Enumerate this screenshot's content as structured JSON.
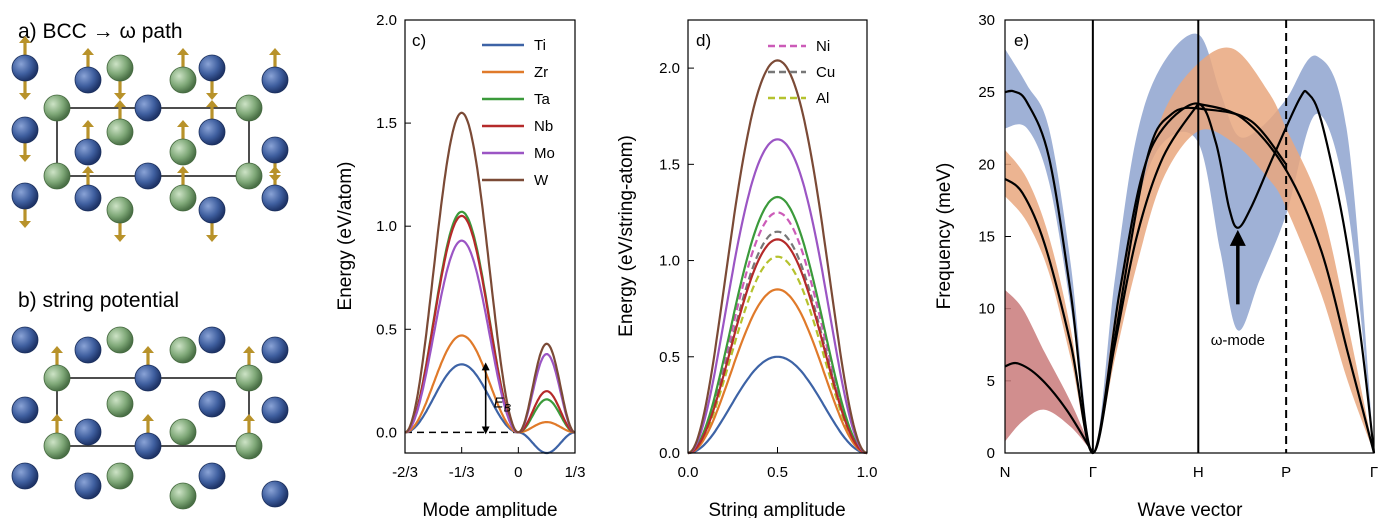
{
  "panels": {
    "a": {
      "caption": "a) BCC → ω path"
    },
    "b": {
      "caption": "b) string potential"
    }
  },
  "colors": {
    "blue_atom": "#3f5f9f",
    "green_atom": "#7fa878",
    "arrow": "#b8922a",
    "band_blue": "#8ea3cf",
    "band_orange": "#e9a77e",
    "band_red": "#c97a7a"
  },
  "chart_data": [
    {
      "panel": "c",
      "label": "c)",
      "type": "line",
      "xlabel": "Mode amplitude",
      "ylabel": "Energy (eV/atom)",
      "xlim": [
        -0.6667,
        0.3333
      ],
      "ylim": [
        -0.1,
        2.0
      ],
      "xticks": [
        -0.6667,
        -0.3333,
        0,
        0.3333
      ],
      "xtick_labels": [
        "-2/3",
        "-1/3",
        "0",
        "1/3"
      ],
      "yticks": [
        0.0,
        0.5,
        1.0,
        1.5,
        2.0
      ],
      "ytick_labels": [
        "0.0",
        "0.5",
        "1.0",
        "1.5",
        "2.0"
      ],
      "legend_position": "top-right",
      "annotation": "E_B",
      "series": [
        {
          "name": "Ti",
          "color": "#3d63a6",
          "barrier": 0.33,
          "right": -0.1
        },
        {
          "name": "Zr",
          "color": "#e07a2a",
          "barrier": 0.47,
          "right": 0.05
        },
        {
          "name": "Ta",
          "color": "#3b9a3b",
          "barrier": 1.07,
          "right": 0.16
        },
        {
          "name": "Nb",
          "color": "#b52a2a",
          "barrier": 1.05,
          "right": 0.2
        },
        {
          "name": "Mo",
          "color": "#9b55c4",
          "barrier": 0.93,
          "right": 0.38
        },
        {
          "name": "W",
          "color": "#7b4a36",
          "barrier": 1.55,
          "right": 0.43
        }
      ]
    },
    {
      "panel": "d",
      "label": "d)",
      "type": "line",
      "xlabel": "String amplitude",
      "ylabel": "Energy (eV/string-atom)",
      "xlim": [
        0.0,
        1.0
      ],
      "ylim": [
        0.0,
        2.25
      ],
      "xticks": [
        0.0,
        0.5,
        1.0
      ],
      "xtick_labels": [
        "0.0",
        "0.5",
        "1.0"
      ],
      "yticks": [
        0.0,
        0.5,
        1.0,
        1.5,
        2.0
      ],
      "ytick_labels": [
        "0.0",
        "0.5",
        "1.0",
        "1.5",
        "2.0"
      ],
      "legend_position": "top-right",
      "series": [
        {
          "name": "Ni",
          "color": "#cc5bb8",
          "dashed": true,
          "peak": 1.25
        },
        {
          "name": "Cu",
          "color": "#777777",
          "dashed": true,
          "peak": 1.15
        },
        {
          "name": "Al",
          "color": "#b5c22e",
          "dashed": true,
          "peak": 1.02
        },
        {
          "name": "",
          "color": "#3d63a6",
          "peak": 0.5
        },
        {
          "name": "",
          "color": "#e07a2a",
          "peak": 0.85
        },
        {
          "name": "",
          "color": "#3b9a3b",
          "peak": 1.33
        },
        {
          "name": "",
          "color": "#b52a2a",
          "peak": 1.11
        },
        {
          "name": "",
          "color": "#9b55c4",
          "peak": 1.63
        },
        {
          "name": "",
          "color": "#7b4a36",
          "peak": 2.04
        }
      ]
    },
    {
      "panel": "e",
      "label": "e)",
      "type": "line",
      "xlabel": "Wave vector",
      "ylabel": "Frequency (meV)",
      "ylim": [
        0,
        30
      ],
      "yticks": [
        0,
        5,
        10,
        15,
        20,
        25,
        30
      ],
      "x_points": [
        "N",
        "Γ",
        "H",
        "P",
        "Γ"
      ],
      "x_positions": [
        0,
        1,
        2.2,
        3.2,
        4.2
      ],
      "annotation": "ω-mode",
      "annotation_target": {
        "x": 2.65,
        "y": 15.6
      },
      "bands": [
        {
          "name": "",
          "color": "#8ea3cf",
          "upper": [
            [
              0,
              28
            ],
            [
              0.25,
              25.5
            ],
            [
              0.5,
              22.5
            ],
            [
              0.75,
              13
            ],
            [
              1,
              0
            ],
            [
              1.25,
              12
            ],
            [
              1.5,
              22
            ],
            [
              1.8,
              27
            ],
            [
              2.2,
              29
            ],
            [
              2.45,
              25
            ],
            [
              2.65,
              22
            ],
            [
              2.9,
              22.5
            ],
            [
              3.2,
              24.5
            ],
            [
              3.55,
              27.5
            ],
            [
              3.9,
              22
            ],
            [
              4.2,
              0
            ]
          ],
          "lower": [
            [
              0,
              22.5
            ],
            [
              0.25,
              22.5
            ],
            [
              0.5,
              18.8
            ],
            [
              0.75,
              10
            ],
            [
              1,
              0
            ],
            [
              1.25,
              8
            ],
            [
              1.5,
              17
            ],
            [
              1.8,
              21.5
            ],
            [
              2.2,
              21.5
            ],
            [
              2.45,
              14
            ],
            [
              2.65,
              8.5
            ],
            [
              2.9,
              12
            ],
            [
              3.2,
              16.5
            ],
            [
              3.55,
              23.5
            ],
            [
              3.9,
              17
            ],
            [
              4.2,
              0
            ]
          ]
        },
        {
          "name": "",
          "color": "#e9a77e",
          "upper": [
            [
              0,
              21
            ],
            [
              0.25,
              19
            ],
            [
              0.5,
              15
            ],
            [
              0.75,
              8.5
            ],
            [
              1,
              0
            ],
            [
              1.25,
              9.5
            ],
            [
              1.5,
              17
            ],
            [
              1.8,
              23.5
            ],
            [
              2.2,
              27
            ],
            [
              2.6,
              28
            ],
            [
              3.0,
              25
            ],
            [
              3.2,
              22.5
            ],
            [
              3.6,
              17
            ],
            [
              3.9,
              9
            ],
            [
              4.2,
              0
            ]
          ],
          "lower": [
            [
              0,
              17.8
            ],
            [
              0.25,
              16
            ],
            [
              0.5,
              12.5
            ],
            [
              0.75,
              6.5
            ],
            [
              1,
              0
            ],
            [
              1.25,
              6.5
            ],
            [
              1.5,
              13
            ],
            [
              1.8,
              19
            ],
            [
              2.2,
              22.3
            ],
            [
              2.6,
              21.5
            ],
            [
              3.0,
              19
            ],
            [
              3.2,
              17
            ],
            [
              3.6,
              11
            ],
            [
              3.9,
              5
            ],
            [
              4.2,
              0
            ]
          ]
        },
        {
          "name": "",
          "color": "#c97a7a",
          "upper": [
            [
              0,
              11.3
            ],
            [
              0.2,
              10
            ],
            [
              0.45,
              7
            ],
            [
              0.75,
              3.5
            ],
            [
              1,
              0
            ]
          ],
          "lower": [
            [
              0,
              0.8
            ],
            [
              0.2,
              2.2
            ],
            [
              0.45,
              3
            ],
            [
              0.75,
              1.8
            ],
            [
              1,
              0
            ]
          ]
        }
      ],
      "lines": [
        [
          [
            0,
            25
          ],
          [
            0.1,
            25.05
          ],
          [
            0.25,
            24.3
          ],
          [
            0.5,
            20.5
          ],
          [
            0.75,
            11
          ],
          [
            1,
            0
          ],
          [
            1.3,
            11
          ],
          [
            1.55,
            19
          ],
          [
            1.8,
            22.5
          ],
          [
            2.2,
            24.2
          ],
          [
            2.4,
            21.5
          ],
          [
            2.55,
            17
          ],
          [
            2.65,
            15.6
          ],
          [
            2.8,
            17
          ],
          [
            3.05,
            20.5
          ],
          [
            3.35,
            24.5
          ],
          [
            3.45,
            24.9
          ],
          [
            3.6,
            23
          ],
          [
            3.85,
            16
          ],
          [
            4.05,
            8
          ],
          [
            4.2,
            0
          ]
        ],
        [
          [
            0,
            19
          ],
          [
            0.2,
            18
          ],
          [
            0.45,
            14.5
          ],
          [
            0.75,
            7.5
          ],
          [
            1,
            0
          ],
          [
            1.25,
            7.5
          ],
          [
            1.5,
            15
          ],
          [
            1.8,
            20.5
          ],
          [
            2.2,
            24.2
          ]
        ],
        [
          [
            2.2,
            24.2
          ],
          [
            2.7,
            23.2
          ],
          [
            3.2,
            19.6
          ],
          [
            3.6,
            14
          ],
          [
            3.9,
            7
          ],
          [
            4.2,
            0
          ]
        ],
        [
          [
            1.2,
            6
          ],
          [
            1.6,
            20
          ],
          [
            1.9,
            23.5
          ],
          [
            2.3,
            23.8
          ],
          [
            2.8,
            23
          ],
          [
            3.2,
            20
          ]
        ],
        [
          [
            0,
            6
          ],
          [
            0.15,
            6.2
          ],
          [
            0.4,
            5.2
          ],
          [
            0.7,
            3
          ],
          [
            1,
            0
          ]
        ]
      ]
    }
  ]
}
